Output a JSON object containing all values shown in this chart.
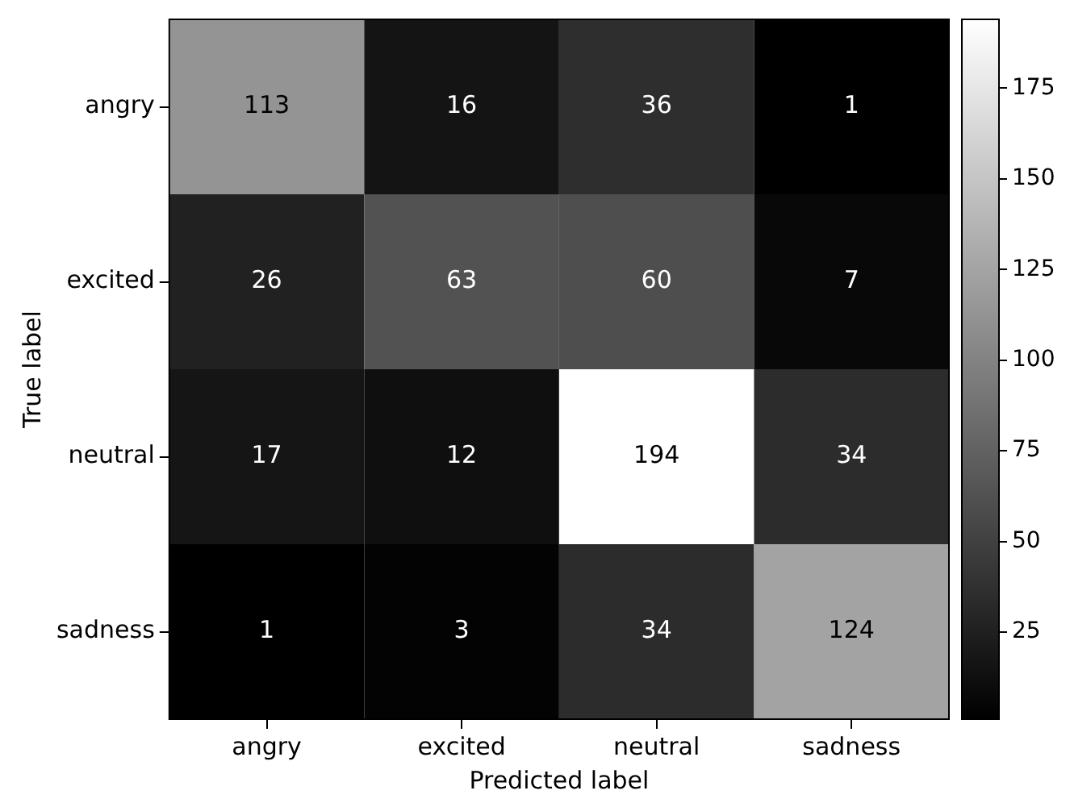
{
  "chart_data": {
    "type": "heatmap",
    "xlabel": "Predicted label",
    "ylabel": "True label",
    "categories": [
      "angry",
      "excited",
      "neutral",
      "sadness"
    ],
    "y_categories": [
      "angry",
      "excited",
      "neutral",
      "sadness"
    ],
    "cells": [
      [
        113,
        16,
        36,
        1
      ],
      [
        26,
        63,
        60,
        7
      ],
      [
        17,
        12,
        194,
        34
      ],
      [
        1,
        3,
        34,
        124
      ]
    ],
    "data_labels": true,
    "clim": [
      1,
      194
    ],
    "cticks": [
      25,
      50,
      75,
      100,
      125,
      150,
      175
    ]
  }
}
